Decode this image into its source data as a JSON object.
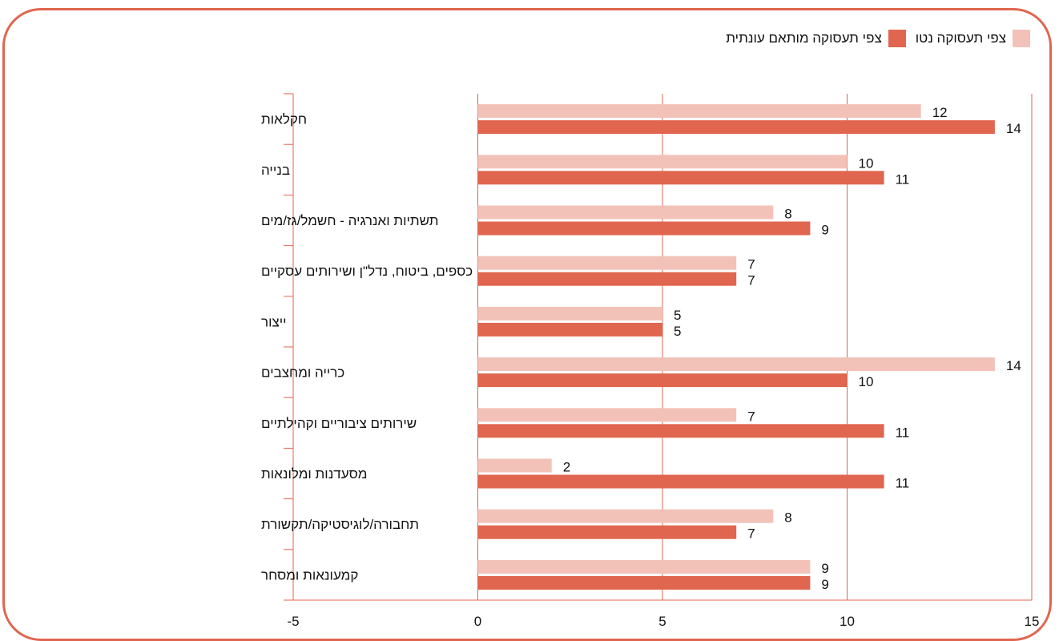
{
  "chart_data": {
    "type": "bar",
    "orientation": "horizontal",
    "categories": [
      "חקלאות",
      "בנייה",
      "תשתיות ואנרגיה - חשמל/גז/מים",
      "כספים, ביטוח, נדל\"ן ושירותים עסקיים",
      "ייצור",
      "כרייה ומחצבים",
      "שירותים ציבוריים וקהילתיים",
      "מסעדנות ומלונאות",
      "תחבורה/לוגיסטיקה/תקשורת",
      "קמעונאות ומסחר"
    ],
    "series": [
      {
        "name": "צפי תעסוקה נטו",
        "color": "#f2c2b9",
        "values": [
          12,
          10,
          8,
          7,
          5,
          14,
          7,
          2,
          8,
          9
        ]
      },
      {
        "name": "צפי תעסוקה מותאם עונתית",
        "color": "#e06650",
        "values": [
          14,
          11,
          9,
          7,
          5,
          10,
          11,
          11,
          7,
          9
        ]
      }
    ],
    "xlim": [
      -5,
      15
    ],
    "xticks": [
      "-5",
      "0",
      "5",
      "10",
      "15"
    ],
    "grid": true,
    "legend_position": "top-right",
    "title": "",
    "xlabel": "",
    "ylabel": ""
  }
}
